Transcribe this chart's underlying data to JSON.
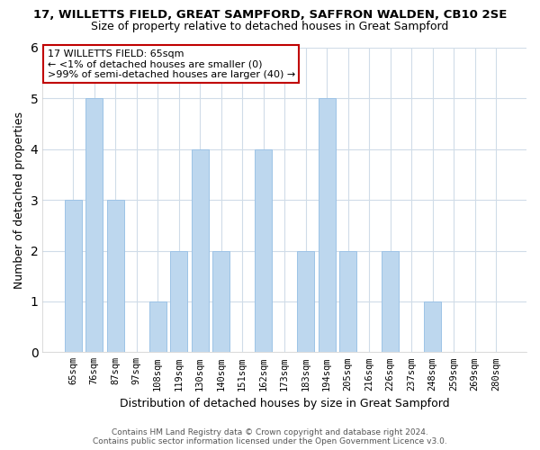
{
  "title_line1": "17, WILLETTS FIELD, GREAT SAMPFORD, SAFFRON WALDEN, CB10 2SE",
  "title_line2": "Size of property relative to detached houses in Great Sampford",
  "xlabel": "Distribution of detached houses by size in Great Sampford",
  "ylabel": "Number of detached properties",
  "bar_labels": [
    "65sqm",
    "76sqm",
    "87sqm",
    "97sqm",
    "108sqm",
    "119sqm",
    "130sqm",
    "140sqm",
    "151sqm",
    "162sqm",
    "173sqm",
    "183sqm",
    "194sqm",
    "205sqm",
    "216sqm",
    "226sqm",
    "237sqm",
    "248sqm",
    "259sqm",
    "269sqm",
    "280sqm"
  ],
  "bar_values": [
    3,
    5,
    3,
    0,
    1,
    2,
    4,
    2,
    0,
    4,
    0,
    2,
    5,
    2,
    0,
    2,
    0,
    1,
    0,
    0,
    0
  ],
  "bar_color_normal": "#bdd7ee",
  "bar_edge_color": "#9dc3e6",
  "ylim": [
    0,
    6
  ],
  "yticks": [
    0,
    1,
    2,
    3,
    4,
    5,
    6
  ],
  "annotation_title": "17 WILLETTS FIELD: 65sqm",
  "annotation_line2": "← <1% of detached houses are smaller (0)",
  "annotation_line3": ">99% of semi-detached houses are larger (40) →",
  "annotation_box_color": "#ffffff",
  "annotation_box_edge": "#c00000",
  "footer_line1": "Contains HM Land Registry data © Crown copyright and database right 2024.",
  "footer_line2": "Contains public sector information licensed under the Open Government Licence v3.0.",
  "grid_color": "#d0dce8",
  "background_color": "#ffffff",
  "title_fontsize": 9.5,
  "subtitle_fontsize": 9,
  "ylabel_fontsize": 9,
  "xlabel_fontsize": 9,
  "tick_fontsize": 7.5,
  "footer_fontsize": 6.5,
  "ann_fontsize": 8
}
